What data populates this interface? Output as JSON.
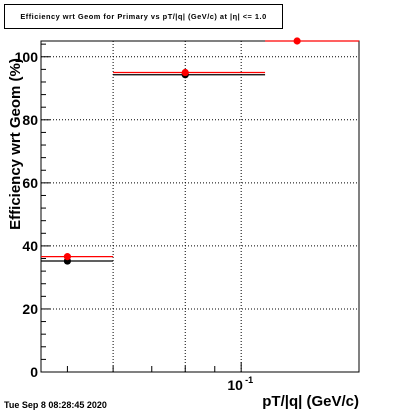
{
  "chart_data": {
    "type": "scatter",
    "title": "Efficiency wrt Geom for Primary vs pT/|q| (GeV/c) at |η| <= 1.0",
    "xlabel": "pT/|q| (GeV/c)",
    "ylabel": "Efficiency wrt Geom (%)",
    "x_scale": "log",
    "xlim": [
      0.045,
      0.16
    ],
    "ylim": [
      0,
      105
    ],
    "yticks": [
      0,
      20,
      40,
      60,
      80,
      100
    ],
    "ytick_labels": [
      "0",
      "20",
      "40",
      "60",
      "80",
      "100"
    ],
    "xtick_label": "10",
    "xtick_label_exp": "-1",
    "xtick_value": 0.1,
    "grid": true,
    "series": [
      {
        "color": "#000000",
        "points": [
          {
            "x": 0.05,
            "y": 35.2,
            "xlow": 0.045,
            "xhigh": 0.06
          },
          {
            "x": 0.08,
            "y": 94.3,
            "xlow": 0.06,
            "xhigh": 0.11
          }
        ]
      },
      {
        "color": "#ff0000",
        "points": [
          {
            "x": 0.05,
            "y": 36.6,
            "xlow": 0.045,
            "xhigh": 0.06
          },
          {
            "x": 0.08,
            "y": 95.0,
            "xlow": 0.06,
            "xhigh": 0.11
          },
          {
            "x": 0.125,
            "y": 105.0,
            "xlow": 0.11,
            "xhigh": 0.16
          }
        ]
      }
    ]
  },
  "footer": {
    "timestamp": "Tue Sep  8 08:28:45 2020"
  }
}
